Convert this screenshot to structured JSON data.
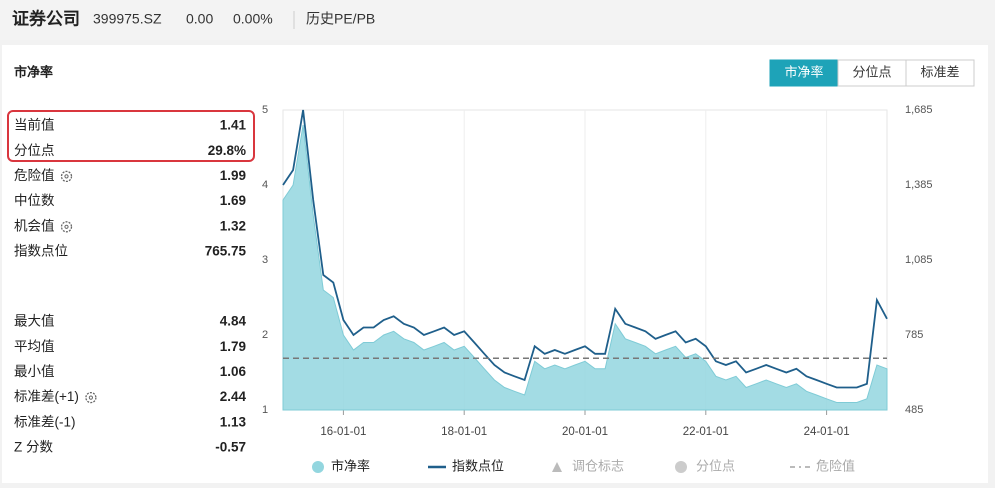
{
  "header": {
    "name": "证券公司",
    "code": "399975.SZ",
    "price": "0.00",
    "change": "0.00%",
    "tab": "历史PE/PB"
  },
  "panel": {
    "title": "市净率",
    "buttons": [
      "市净率",
      "分位点",
      "标准差"
    ]
  },
  "stats": [
    {
      "items": [
        {
          "label": "当前值",
          "value": "1.41"
        },
        {
          "label": "分位点",
          "value": "29.8%"
        },
        {
          "label": "危险值",
          "value": "1.99",
          "gear": true
        },
        {
          "label": "中位数",
          "value": "1.69"
        },
        {
          "label": "机会值",
          "value": "1.32",
          "gear": true
        },
        {
          "label": "指数点位",
          "value": "765.75"
        }
      ]
    },
    {
      "items": [
        {
          "label": "最大值",
          "value": "4.84"
        },
        {
          "label": "平均值",
          "value": "1.79"
        },
        {
          "label": "最小值",
          "value": "1.06"
        },
        {
          "label": "标准差(+1)",
          "value": "2.44",
          "gear": true
        },
        {
          "label": "标准差(-1)",
          "value": "1.13"
        },
        {
          "label": "Z 分数",
          "value": "-0.57"
        }
      ]
    }
  ],
  "chart_data": {
    "type": "line",
    "categories": [
      null,
      null,
      null,
      null,
      null,
      null,
      "16-01-01",
      null,
      null,
      null,
      null,
      null,
      null,
      null,
      null,
      null,
      null,
      null,
      "18-01-01",
      null,
      null,
      null,
      null,
      null,
      null,
      null,
      null,
      null,
      null,
      null,
      "20-01-01",
      null,
      null,
      null,
      null,
      null,
      null,
      null,
      null,
      null,
      null,
      null,
      "22-01-01",
      null,
      null,
      null,
      null,
      null,
      null,
      null,
      null,
      null,
      null,
      null,
      "24-01-01",
      null,
      null,
      null,
      null,
      null,
      null
    ],
    "series": [
      {
        "name": "市净率",
        "color": "#93d6df",
        "values": [
          3.8,
          4.0,
          4.8,
          3.6,
          2.6,
          2.5,
          2.0,
          1.8,
          1.9,
          1.9,
          2.0,
          2.05,
          1.95,
          1.9,
          1.8,
          1.85,
          1.9,
          1.8,
          1.85,
          1.7,
          1.55,
          1.4,
          1.3,
          1.25,
          1.2,
          1.65,
          1.55,
          1.6,
          1.55,
          1.6,
          1.65,
          1.55,
          1.55,
          2.15,
          1.95,
          1.9,
          1.85,
          1.75,
          1.8,
          1.85,
          1.7,
          1.75,
          1.65,
          1.45,
          1.4,
          1.45,
          1.3,
          1.35,
          1.4,
          1.35,
          1.3,
          1.35,
          1.25,
          1.2,
          1.15,
          1.1,
          1.1,
          1.1,
          1.15,
          1.6,
          1.55
        ]
      },
      {
        "name": "指数点位",
        "color": "#1f5f8b",
        "axis": "y2",
        "values": [
          1385,
          1445,
          1685,
          1325,
          1025,
          995,
          845,
          785,
          815,
          815,
          845,
          860,
          830,
          815,
          785,
          800,
          815,
          785,
          800,
          755,
          710,
          665,
          635,
          620,
          605,
          740,
          710,
          725,
          710,
          725,
          740,
          710,
          710,
          890,
          830,
          815,
          800,
          770,
          785,
          800,
          755,
          770,
          740,
          680,
          665,
          680,
          635,
          650,
          665,
          650,
          635,
          650,
          620,
          605,
          590,
          575,
          575,
          575,
          590,
          925,
          850
        ]
      }
    ],
    "ylim": [
      1,
      5
    ],
    "yticks": [
      1,
      2,
      3,
      4,
      5
    ],
    "y2lim": [
      485,
      1685
    ],
    "y2ticks": [
      485,
      785,
      {
        "value": 1085,
        "label": "1,085"
      },
      {
        "value": 1385,
        "label": "1,385"
      },
      {
        "value": 1685,
        "label": "1,685"
      }
    ],
    "legend_extra": [
      "调仓标志",
      "分位点",
      "危险值"
    ]
  }
}
